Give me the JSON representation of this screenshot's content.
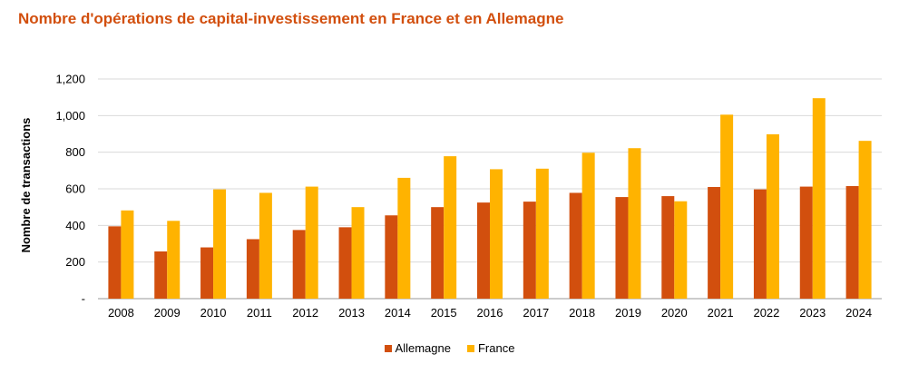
{
  "title": "Nombre d'opérations de capital-investissement en France et en Allemagne",
  "chart_data": {
    "type": "bar",
    "title": "Nombre d'opérations de capital-investissement en France et en Allemagne",
    "xlabel": "",
    "ylabel": "Nombre de transactions",
    "ylim": [
      0,
      1200
    ],
    "yticks": [
      0,
      200,
      400,
      600,
      800,
      1000,
      1200
    ],
    "ytick_labels": [
      "-",
      "200",
      "400",
      "600",
      "800",
      "1,000",
      "1,200"
    ],
    "grid": true,
    "legend_position": "bottom",
    "categories": [
      "2008",
      "2009",
      "2010",
      "2011",
      "2012",
      "2013",
      "2014",
      "2015",
      "2016",
      "2017",
      "2018",
      "2019",
      "2020",
      "2021",
      "2022",
      "2023",
      "2024"
    ],
    "series": [
      {
        "name": "Allemagne",
        "color": "#D24F0E",
        "values": [
          395,
          258,
          280,
          325,
          375,
          390,
          455,
          500,
          525,
          530,
          578,
          555,
          560,
          610,
          597,
          612,
          615
        ]
      },
      {
        "name": "France",
        "color": "#FFB300",
        "values": [
          482,
          425,
          597,
          578,
          612,
          500,
          660,
          778,
          707,
          710,
          797,
          822,
          532,
          1005,
          898,
          1095,
          862
        ]
      }
    ]
  }
}
